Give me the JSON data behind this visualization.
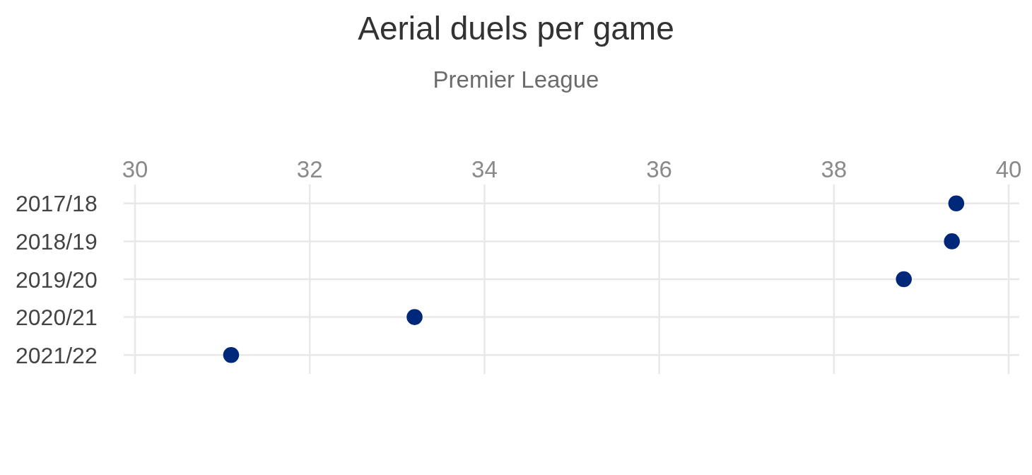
{
  "chart_data": {
    "type": "scatter",
    "title": "Aerial duels per game",
    "subtitle": "Premier League",
    "categories": [
      "2017/18",
      "2018/19",
      "2019/20",
      "2020/21",
      "2021/22"
    ],
    "orientation": "horizontal",
    "values": [
      39.4,
      39.35,
      38.8,
      33.2,
      31.1
    ],
    "color": "#00287a",
    "marker": "circle",
    "xlim": [
      30,
      40
    ],
    "xticks": [
      30,
      32,
      34,
      36,
      38,
      40
    ],
    "grid": true
  }
}
